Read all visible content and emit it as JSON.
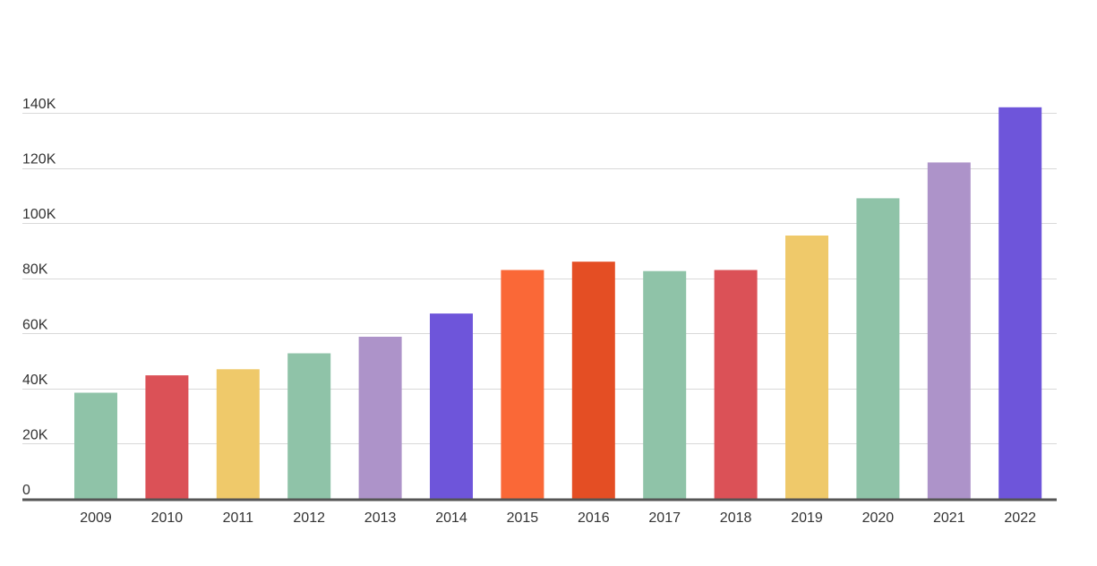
{
  "chart_data": {
    "type": "bar",
    "title": "",
    "xlabel": "",
    "ylabel": "",
    "categories": [
      "2009",
      "2010",
      "2011",
      "2012",
      "2013",
      "2014",
      "2015",
      "2016",
      "2017",
      "2018",
      "2019",
      "2020",
      "2021",
      "2022"
    ],
    "values": [
      38500,
      44800,
      47000,
      52800,
      58800,
      67200,
      83000,
      86000,
      82600,
      83000,
      95500,
      109000,
      122000,
      142000
    ],
    "ylim": [
      0,
      140000
    ],
    "yticks": [
      0,
      20000,
      40000,
      60000,
      80000,
      100000,
      120000,
      140000
    ],
    "ytick_labels": [
      "0",
      "20K",
      "40K",
      "60K",
      "80K",
      "100K",
      "120K",
      "140K"
    ],
    "grid": true,
    "legend": "none",
    "bar_colors": [
      "#8fc3a8",
      "#db5157",
      "#efc96a",
      "#8fc3a8",
      "#ad93c9",
      "#6e55da",
      "#fa6837",
      "#e44e24",
      "#8fc3a8",
      "#db5157",
      "#efc96a",
      "#8fc3a8",
      "#ad93c9",
      "#6e55da"
    ],
    "grid_color": "#d9d9d9",
    "axis_color": "#555555",
    "text_color": "#333333"
  }
}
